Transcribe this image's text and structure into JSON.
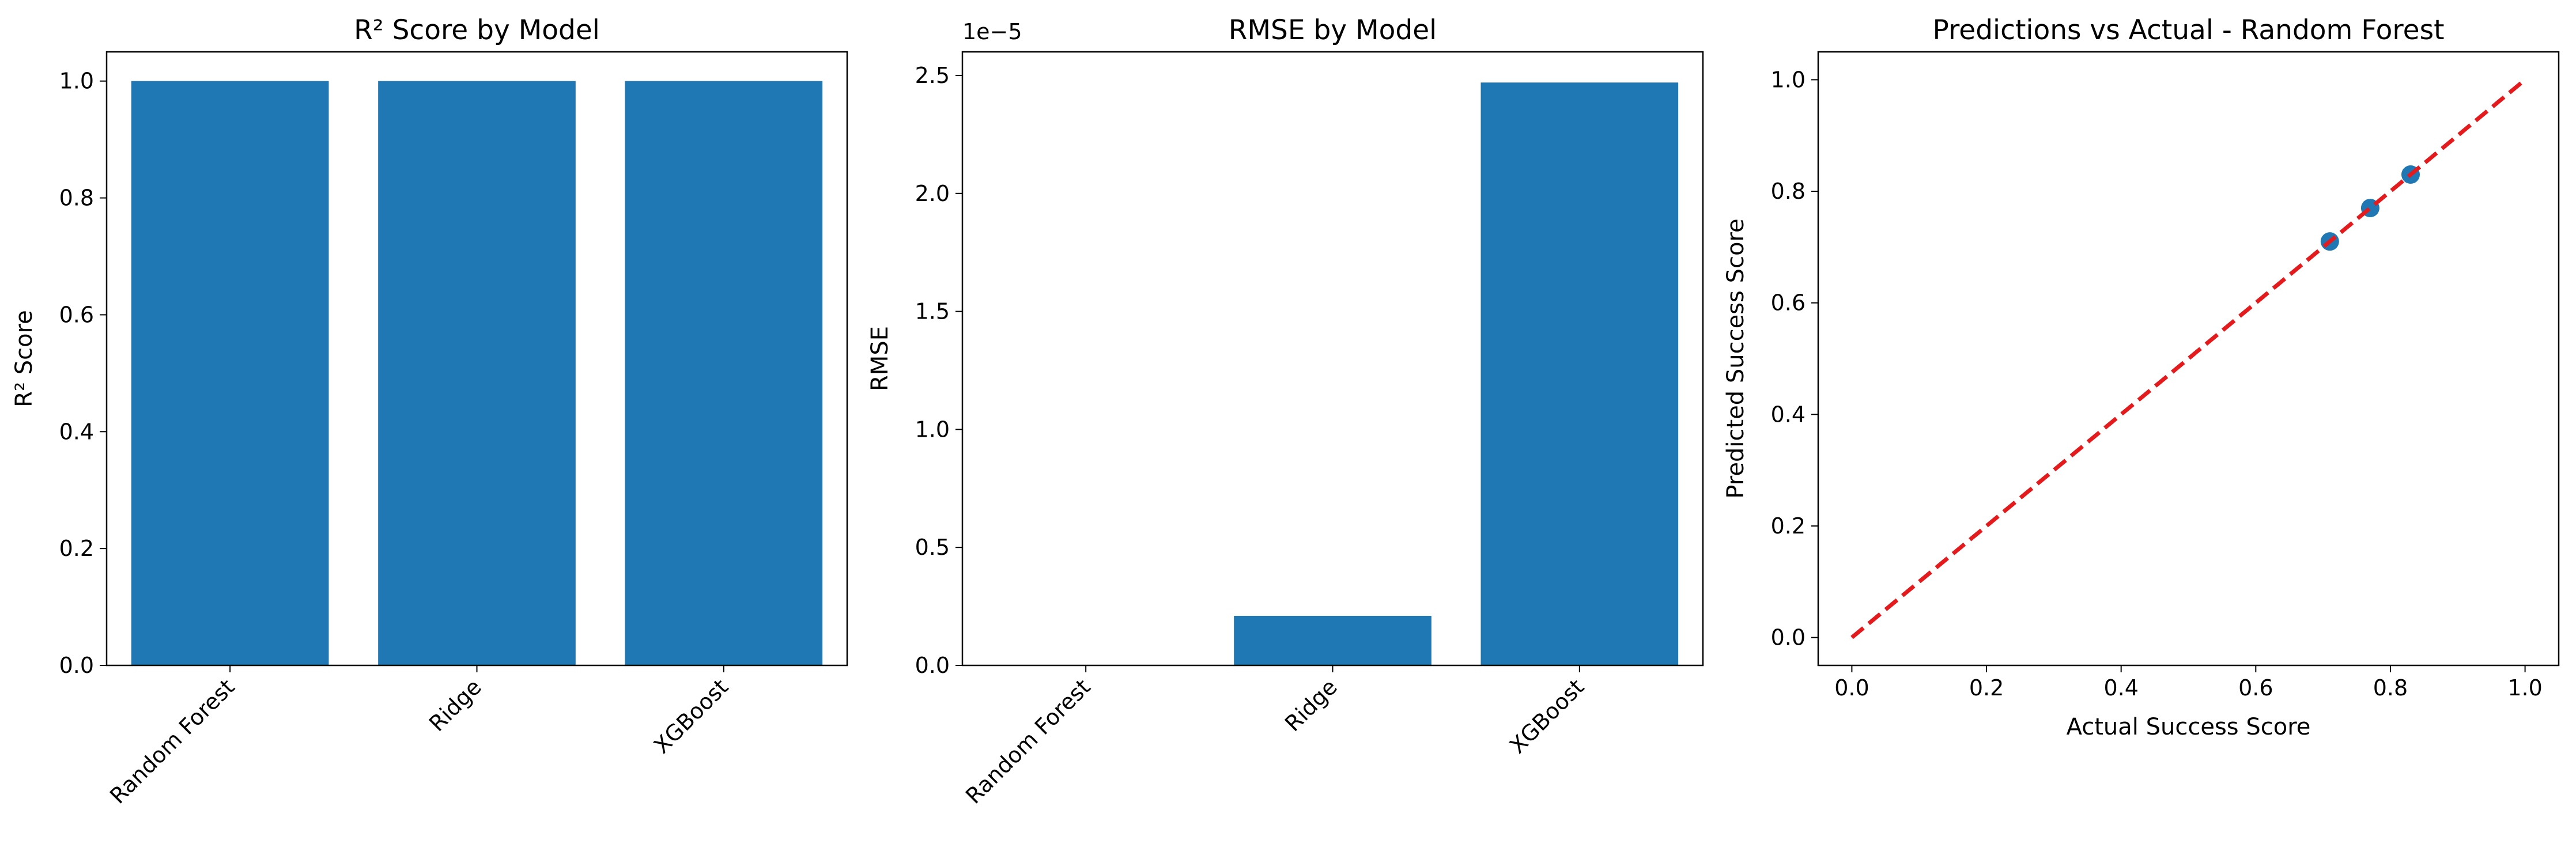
{
  "chart_data": [
    {
      "type": "bar",
      "title": "R² Score by Model",
      "xlabel": "",
      "ylabel": "R² Score",
      "categories": [
        "Random Forest",
        "Ridge",
        "XGBoost"
      ],
      "values": [
        1.0,
        1.0,
        1.0
      ],
      "ylim": [
        0,
        1.05
      ],
      "yticks": [
        "0.0",
        "0.2",
        "0.4",
        "0.6",
        "0.8",
        "1.0"
      ],
      "color": "#1f77b4",
      "grid": false
    },
    {
      "type": "bar",
      "title": "RMSE by Model",
      "xlabel": "",
      "ylabel": "RMSE",
      "offset_text": "1e−5",
      "categories": [
        "Random Forest",
        "Ridge",
        "XGBoost"
      ],
      "values": [
        0.0,
        0.21,
        2.47
      ],
      "ylim": [
        0,
        2.6
      ],
      "yticks": [
        "0.0",
        "0.5",
        "1.0",
        "1.5",
        "2.0",
        "2.5"
      ],
      "color": "#1f77b4",
      "grid": false
    },
    {
      "type": "scatter",
      "title": "Predictions vs Actual - Random Forest",
      "xlabel": "Actual Success Score",
      "ylabel": "Predicted Success Score",
      "points": [
        {
          "x": 0.71,
          "y": 0.71
        },
        {
          "x": 0.77,
          "y": 0.77
        },
        {
          "x": 0.83,
          "y": 0.83
        }
      ],
      "reference_line": {
        "from": [
          0,
          0
        ],
        "to": [
          1,
          1
        ],
        "style": "dashed",
        "color": "#e41a1c"
      },
      "xlim": [
        -0.05,
        1.05
      ],
      "ylim": [
        -0.05,
        1.05
      ],
      "xticks": [
        "0.0",
        "0.2",
        "0.4",
        "0.6",
        "0.8",
        "1.0"
      ],
      "yticks": [
        "0.0",
        "0.2",
        "0.4",
        "0.6",
        "0.8",
        "1.0"
      ],
      "color": "#1f77b4",
      "grid": false
    }
  ]
}
